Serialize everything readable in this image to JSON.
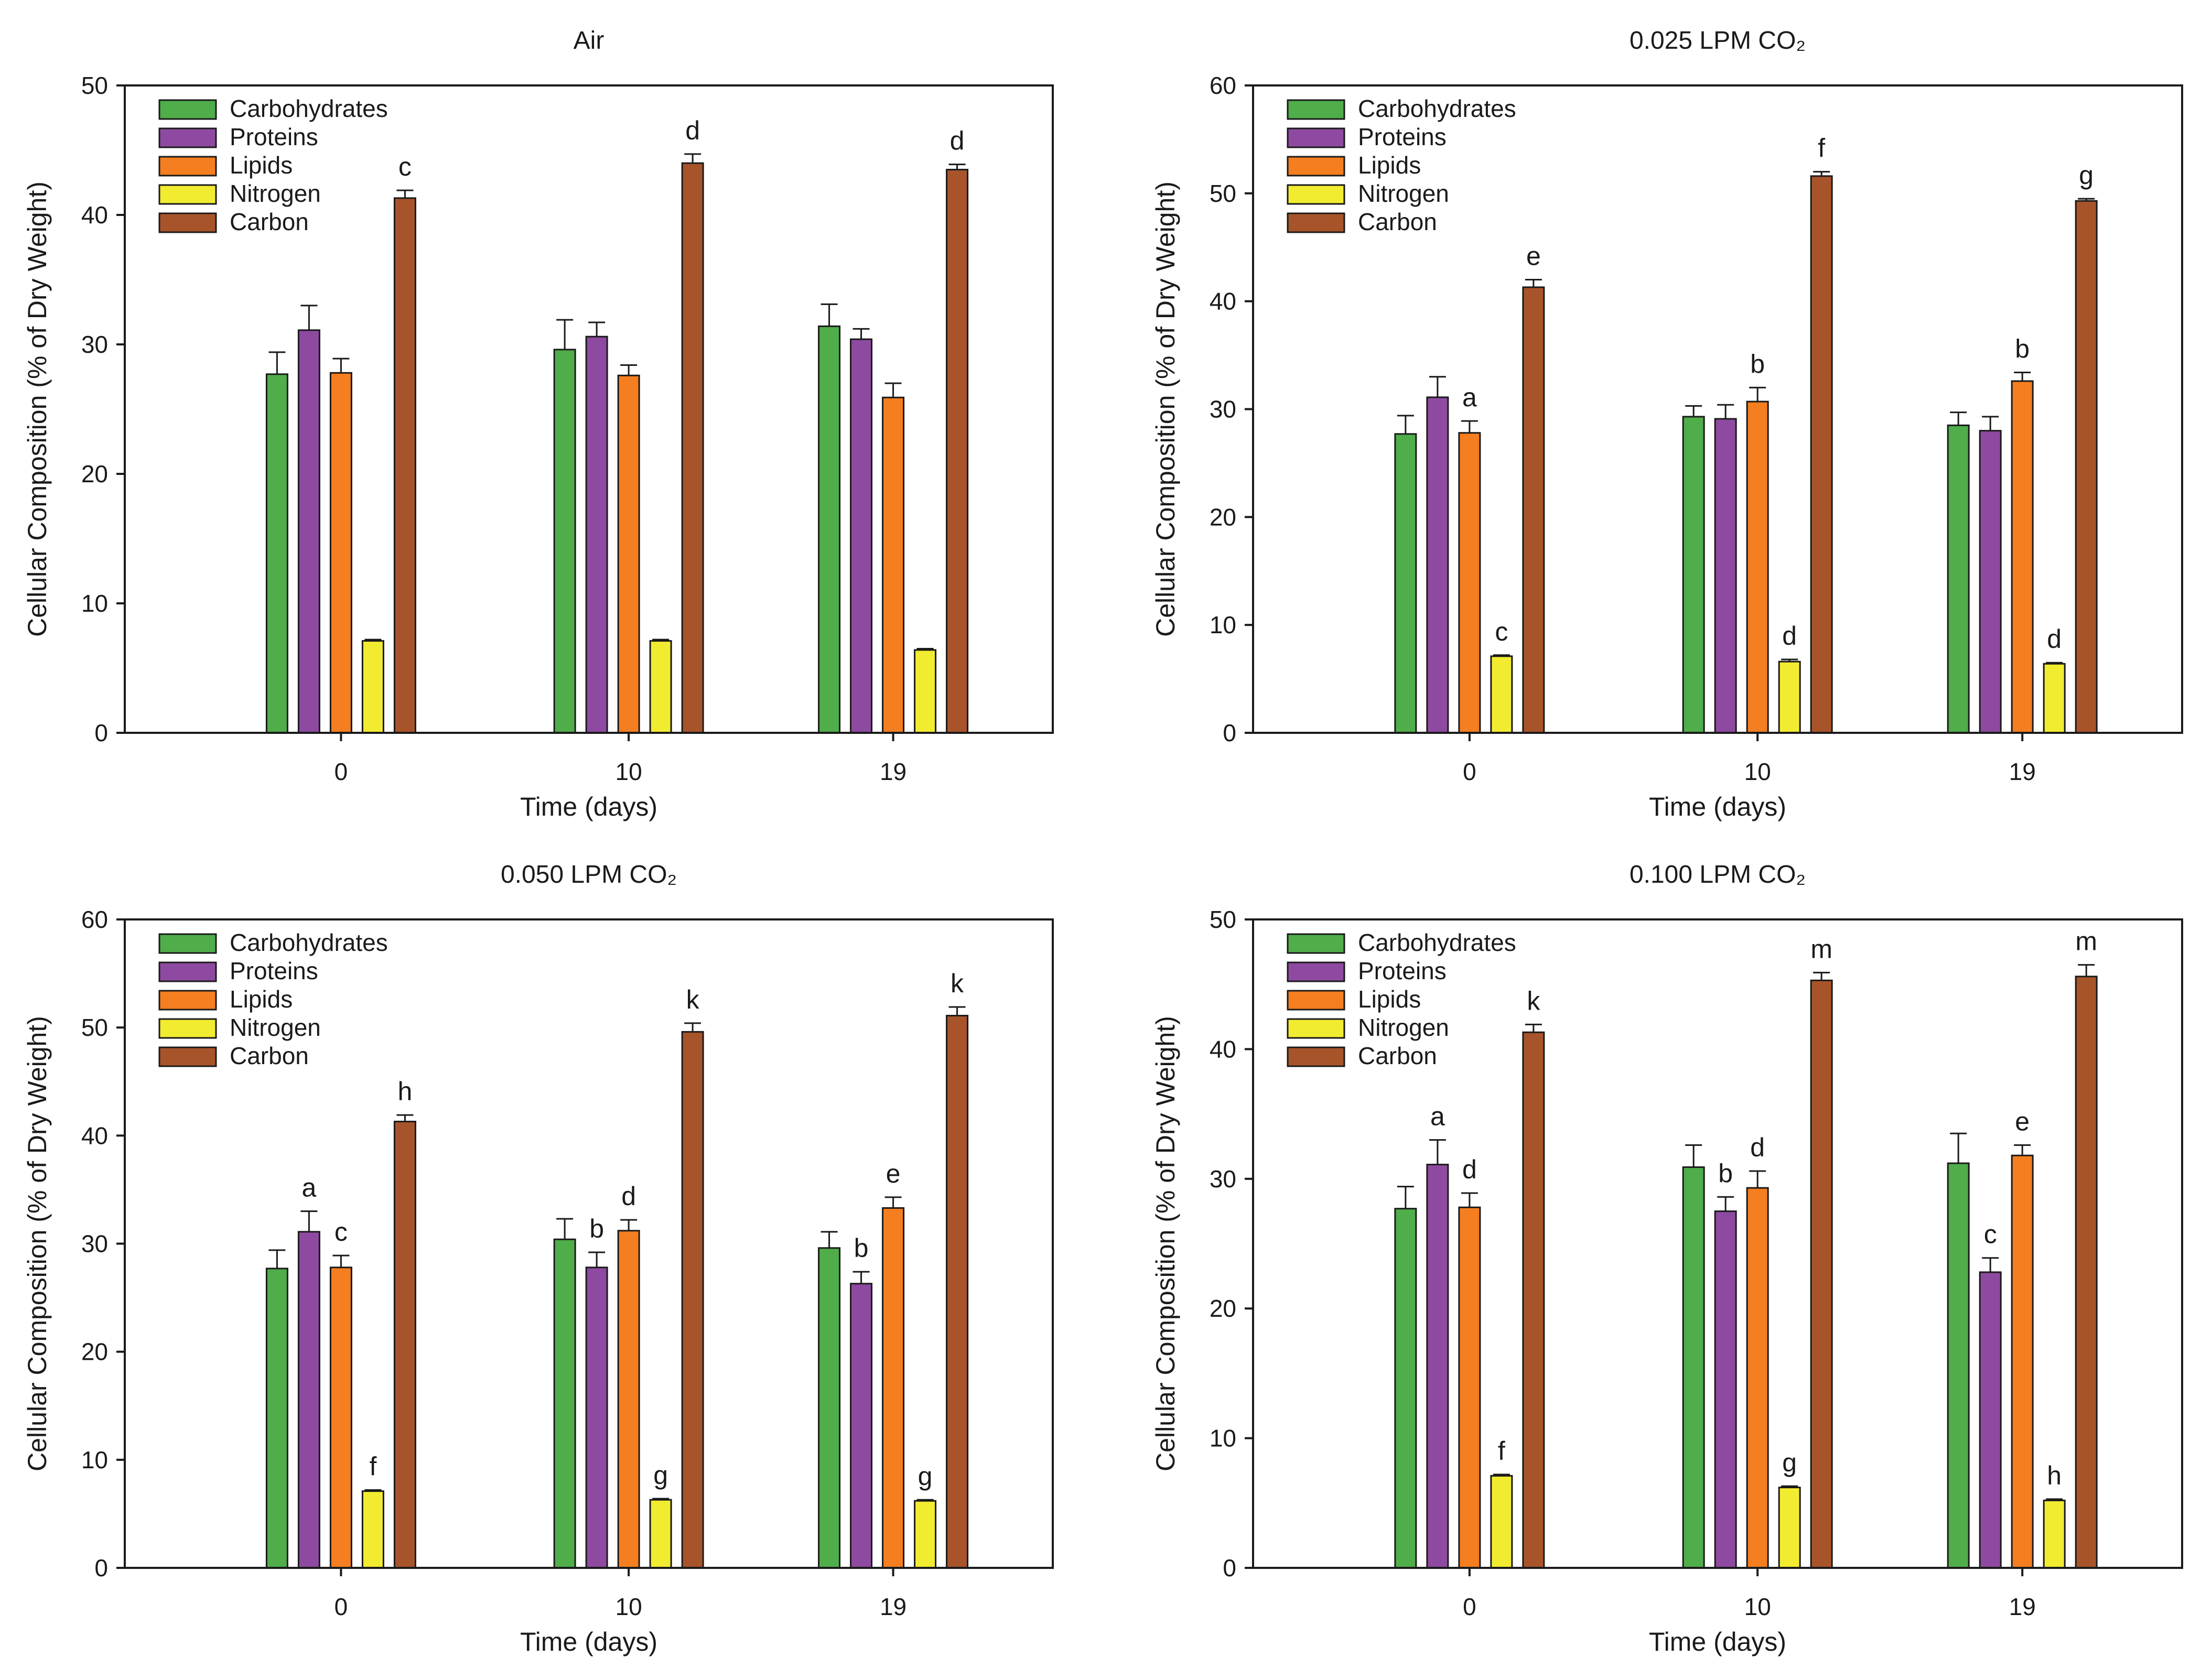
{
  "chart_data": [
    {
      "type": "bar",
      "title": "Air",
      "xlabel": "Time (days)",
      "ylabel": "Cellular Composition (% of Dry Weight)",
      "ylim": [
        0,
        50
      ],
      "yticks": [
        "0",
        "10",
        "20",
        "30",
        "40",
        "50"
      ],
      "categories": [
        "0",
        "10",
        "19"
      ],
      "legend_position": "top-left",
      "series": [
        {
          "name": "Carbohydrates",
          "color": "#4fad4a",
          "values": [
            27.7,
            29.6,
            31.4
          ],
          "errors": [
            1.7,
            2.3,
            1.7
          ],
          "labels": [
            "",
            "",
            ""
          ]
        },
        {
          "name": "Proteins",
          "color": "#8e4aa0",
          "values": [
            31.1,
            30.6,
            30.4
          ],
          "errors": [
            1.9,
            1.1,
            0.8
          ],
          "labels": [
            "",
            "",
            ""
          ]
        },
        {
          "name": "Lipids",
          "color": "#f47e20",
          "values": [
            27.8,
            27.6,
            25.9
          ],
          "errors": [
            1.1,
            0.8,
            1.1
          ],
          "labels": [
            "",
            "",
            ""
          ]
        },
        {
          "name": "Nitrogen",
          "color": "#f2ec31",
          "values": [
            7.1,
            7.1,
            6.4
          ],
          "errors": [
            0.1,
            0.1,
            0.1
          ],
          "labels": [
            "",
            "",
            ""
          ]
        },
        {
          "name": "Carbon",
          "color": "#a8542a",
          "values": [
            41.3,
            44.0,
            43.5
          ],
          "errors": [
            0.6,
            0.7,
            0.4
          ],
          "labels": [
            "c",
            "d",
            "d"
          ]
        }
      ]
    },
    {
      "type": "bar",
      "title": "0.025 LPM CO₂",
      "xlabel": "Time (days)",
      "ylabel": "Cellular Composition (% of Dry Weight)",
      "ylim": [
        0,
        60
      ],
      "yticks": [
        "0",
        "10",
        "20",
        "30",
        "40",
        "50",
        "60"
      ],
      "categories": [
        "0",
        "10",
        "19"
      ],
      "legend_position": "top-left",
      "series": [
        {
          "name": "Carbohydrates",
          "color": "#4fad4a",
          "values": [
            27.7,
            29.3,
            28.5
          ],
          "errors": [
            1.7,
            1.0,
            1.2
          ],
          "labels": [
            "",
            "",
            ""
          ]
        },
        {
          "name": "Proteins",
          "color": "#8e4aa0",
          "values": [
            31.1,
            29.1,
            28.0
          ],
          "errors": [
            1.9,
            1.3,
            1.3
          ],
          "labels": [
            "",
            "",
            ""
          ]
        },
        {
          "name": "Lipids",
          "color": "#f47e20",
          "values": [
            27.8,
            30.7,
            32.6
          ],
          "errors": [
            1.1,
            1.3,
            0.8
          ],
          "labels": [
            "a",
            "b",
            "b"
          ]
        },
        {
          "name": "Nitrogen",
          "color": "#f2ec31",
          "values": [
            7.1,
            6.6,
            6.4
          ],
          "errors": [
            0.1,
            0.2,
            0.1
          ],
          "labels": [
            "c",
            "d",
            "d"
          ]
        },
        {
          "name": "Carbon",
          "color": "#a8542a",
          "values": [
            41.3,
            51.6,
            49.3
          ],
          "errors": [
            0.7,
            0.4,
            0.2
          ],
          "labels": [
            "e",
            "f",
            "g"
          ]
        }
      ]
    },
    {
      "type": "bar",
      "title": "0.050 LPM CO₂",
      "xlabel": "Time (days)",
      "ylabel": "Cellular Composition (% of Dry Weight)",
      "ylim": [
        0,
        60
      ],
      "yticks": [
        "0",
        "10",
        "20",
        "30",
        "40",
        "50",
        "60"
      ],
      "categories": [
        "0",
        "10",
        "19"
      ],
      "legend_position": "top-left",
      "series": [
        {
          "name": "Carbohydrates",
          "color": "#4fad4a",
          "values": [
            27.7,
            30.4,
            29.6
          ],
          "errors": [
            1.7,
            1.9,
            1.5
          ],
          "labels": [
            "",
            "",
            ""
          ]
        },
        {
          "name": "Proteins",
          "color": "#8e4aa0",
          "values": [
            31.1,
            27.8,
            26.3
          ],
          "errors": [
            1.9,
            1.4,
            1.1
          ],
          "labels": [
            "a",
            "b",
            "b"
          ]
        },
        {
          "name": "Lipids",
          "color": "#f47e20",
          "values": [
            27.8,
            31.2,
            33.3
          ],
          "errors": [
            1.1,
            1.0,
            1.0
          ],
          "labels": [
            "c",
            "d",
            "e"
          ]
        },
        {
          "name": "Nitrogen",
          "color": "#f2ec31",
          "values": [
            7.1,
            6.3,
            6.2
          ],
          "errors": [
            0.1,
            0.1,
            0.1
          ],
          "labels": [
            "f",
            "g",
            "g"
          ]
        },
        {
          "name": "Carbon",
          "color": "#a8542a",
          "values": [
            41.3,
            49.6,
            51.1
          ],
          "errors": [
            0.6,
            0.8,
            0.8
          ],
          "labels": [
            "h",
            "k",
            "k"
          ]
        }
      ]
    },
    {
      "type": "bar",
      "title": "0.100 LPM CO₂",
      "xlabel": "Time (days)",
      "ylabel": "Cellular Composition (% of Dry Weight)",
      "ylim": [
        0,
        50
      ],
      "yticks": [
        "0",
        "10",
        "20",
        "30",
        "40",
        "50"
      ],
      "categories": [
        "0",
        "10",
        "19"
      ],
      "legend_position": "top-left",
      "series": [
        {
          "name": "Carbohydrates",
          "color": "#4fad4a",
          "values": [
            27.7,
            30.9,
            31.2
          ],
          "errors": [
            1.7,
            1.7,
            2.3
          ],
          "labels": [
            "",
            "",
            ""
          ]
        },
        {
          "name": "Proteins",
          "color": "#8e4aa0",
          "values": [
            31.1,
            27.5,
            22.8
          ],
          "errors": [
            1.9,
            1.1,
            1.1
          ],
          "labels": [
            "a",
            "b",
            "c"
          ]
        },
        {
          "name": "Lipids",
          "color": "#f47e20",
          "values": [
            27.8,
            29.3,
            31.8
          ],
          "errors": [
            1.1,
            1.3,
            0.8
          ],
          "labels": [
            "d",
            "d",
            "e"
          ]
        },
        {
          "name": "Nitrogen",
          "color": "#f2ec31",
          "values": [
            7.1,
            6.2,
            5.2
          ],
          "errors": [
            0.1,
            0.1,
            0.1
          ],
          "labels": [
            "f",
            "g",
            "h"
          ]
        },
        {
          "name": "Carbon",
          "color": "#a8542a",
          "values": [
            41.3,
            45.3,
            45.6
          ],
          "errors": [
            0.6,
            0.6,
            0.9
          ],
          "labels": [
            "k",
            "m",
            "m"
          ]
        }
      ]
    }
  ]
}
